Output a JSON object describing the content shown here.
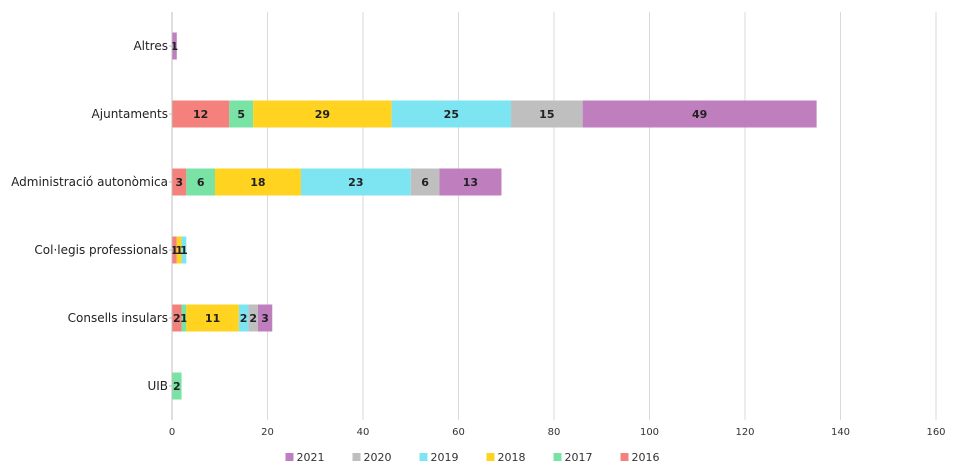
{
  "chart_data": {
    "type": "bar",
    "orientation": "horizontal",
    "stacked": true,
    "categories": [
      "Altres",
      "Ajuntaments",
      "Administració autonòmica",
      "Col·legis professionals",
      "Consells insulars",
      "UIB"
    ],
    "series": [
      {
        "name": "2016",
        "color": "#f4817c",
        "values": [
          0,
          12,
          3,
          1,
          2,
          0
        ]
      },
      {
        "name": "2017",
        "color": "#79e2a5",
        "values": [
          0,
          5,
          6,
          0,
          1,
          2
        ]
      },
      {
        "name": "2018",
        "color": "#ffd320",
        "values": [
          0,
          29,
          18,
          1,
          11,
          0
        ]
      },
      {
        "name": "2019",
        "color": "#7de5f2",
        "values": [
          0,
          25,
          23,
          1,
          2,
          0
        ]
      },
      {
        "name": "2020",
        "color": "#bfbfbf",
        "values": [
          0,
          15,
          6,
          0,
          2,
          0
        ]
      },
      {
        "name": "2021",
        "color": "#bf7fbf",
        "values": [
          1,
          49,
          13,
          0,
          3,
          0
        ]
      }
    ],
    "xlim": [
      0,
      160
    ],
    "x_ticks": [
      "0",
      "20",
      "40",
      "60",
      "80",
      "100",
      "120",
      "140",
      "160"
    ],
    "grid": true,
    "legend_position": "bottom",
    "legend_order": [
      "2021",
      "2020",
      "2019",
      "2018",
      "2017",
      "2016"
    ]
  }
}
